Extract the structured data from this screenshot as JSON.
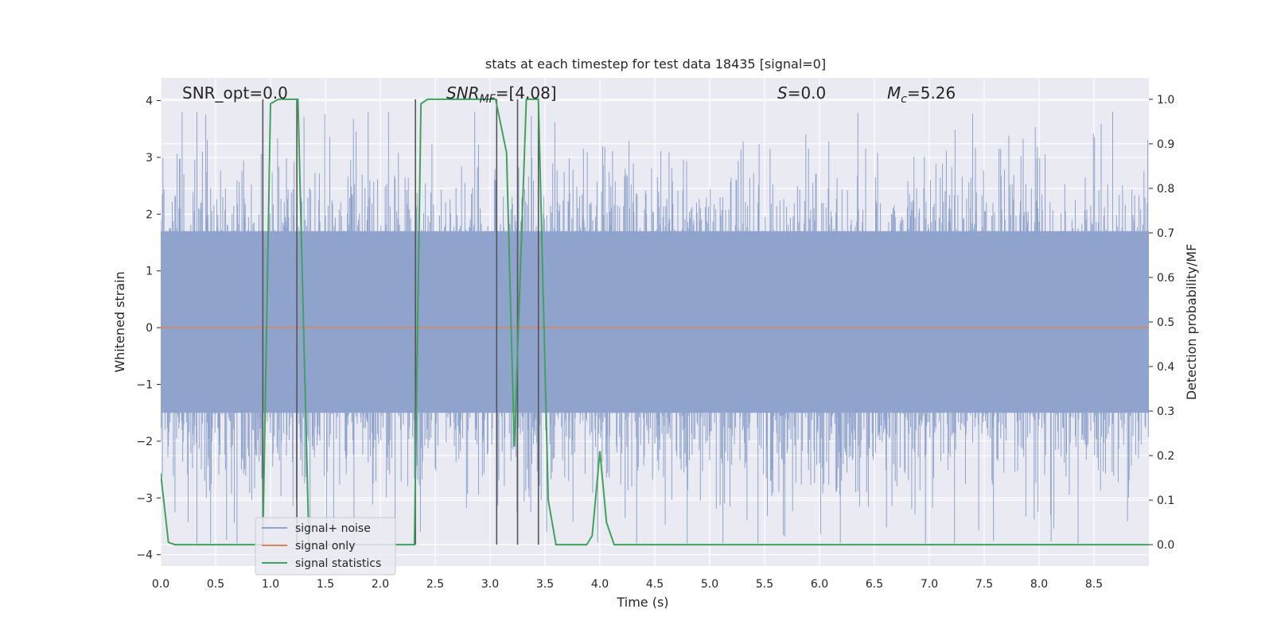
{
  "chart_data": {
    "type": "line",
    "title": "stats at each timestep for test data 18435 [signal=0]",
    "xlabel": "Time (s)",
    "ylabel": "Whitened strain",
    "y2label": "Detection probability/MF",
    "xlim": [
      0.0,
      9.0
    ],
    "ylim": [
      -4.2,
      4.4
    ],
    "y2lim": [
      -0.048,
      1.048
    ],
    "grid": true,
    "legend_position": "lower-left",
    "xticks": [
      "0.0",
      "0.5",
      "1.0",
      "1.5",
      "2.0",
      "2.5",
      "3.0",
      "3.5",
      "4.0",
      "4.5",
      "5.0",
      "5.5",
      "6.0",
      "6.5",
      "7.0",
      "7.5",
      "8.0",
      "8.5"
    ],
    "yticks": [
      "4",
      "3",
      "2",
      "1",
      "0",
      "−1",
      "−2",
      "−3",
      "−4"
    ],
    "y2ticks": [
      "1.0",
      "0.9",
      "0.8",
      "0.7",
      "0.6",
      "0.5",
      "0.4",
      "0.3",
      "0.2",
      "0.1",
      "0.0"
    ],
    "annotations": {
      "snr_opt": "SNR_opt=0.0",
      "snr_mf_base": "SNR",
      "snr_mf_sub": "MF",
      "snr_mf_value": "=[4.08]",
      "s_symbol": "S",
      "s_value": "=0.0",
      "mc_base": "M",
      "mc_sub": "c",
      "mc_value": "=5.26"
    },
    "colors": {
      "background": "#eaeaf2",
      "grid": "#ffffff",
      "noise": "#8fa3cc",
      "signal": "#dd8452",
      "statistics": "#3ea35b",
      "vlines": "#555555",
      "text": "#262626"
    },
    "series": [
      {
        "name": "signal+ noise",
        "style": "noise-band",
        "sigma": 1.0,
        "band_range": [
          -1.5,
          1.7
        ],
        "max_peak": 3.8,
        "min_peak": -3.8
      },
      {
        "name": "signal only",
        "x": [
          0.0,
          9.0
        ],
        "y": [
          0.0,
          0.0
        ]
      },
      {
        "name": "signal statistics",
        "axis": "right",
        "x": [
          0.0,
          0.07,
          0.13,
          0.5,
          0.93,
          1.0,
          1.07,
          1.25,
          1.35,
          1.5,
          2.0,
          2.31,
          2.37,
          2.43,
          2.5,
          3.05,
          3.15,
          3.22,
          3.33,
          3.44,
          3.53,
          3.6,
          3.88,
          3.93,
          4.0,
          4.06,
          4.13,
          4.5,
          9.0
        ],
        "y": [
          0.16,
          0.005,
          0.0,
          0.0,
          0.0,
          0.99,
          1.0,
          1.0,
          0.0,
          0.0,
          0.0,
          0.0,
          0.99,
          1.0,
          1.0,
          1.0,
          0.88,
          0.22,
          1.0,
          1.0,
          0.1,
          0.0,
          0.0,
          0.02,
          0.21,
          0.05,
          0.0,
          0.0,
          0.0
        ]
      }
    ],
    "vertical_lines": [
      0.93,
      1.24,
      2.32,
      3.06,
      3.25,
      3.44
    ],
    "legend": [
      "signal+ noise",
      "signal only",
      "signal statistics"
    ]
  }
}
